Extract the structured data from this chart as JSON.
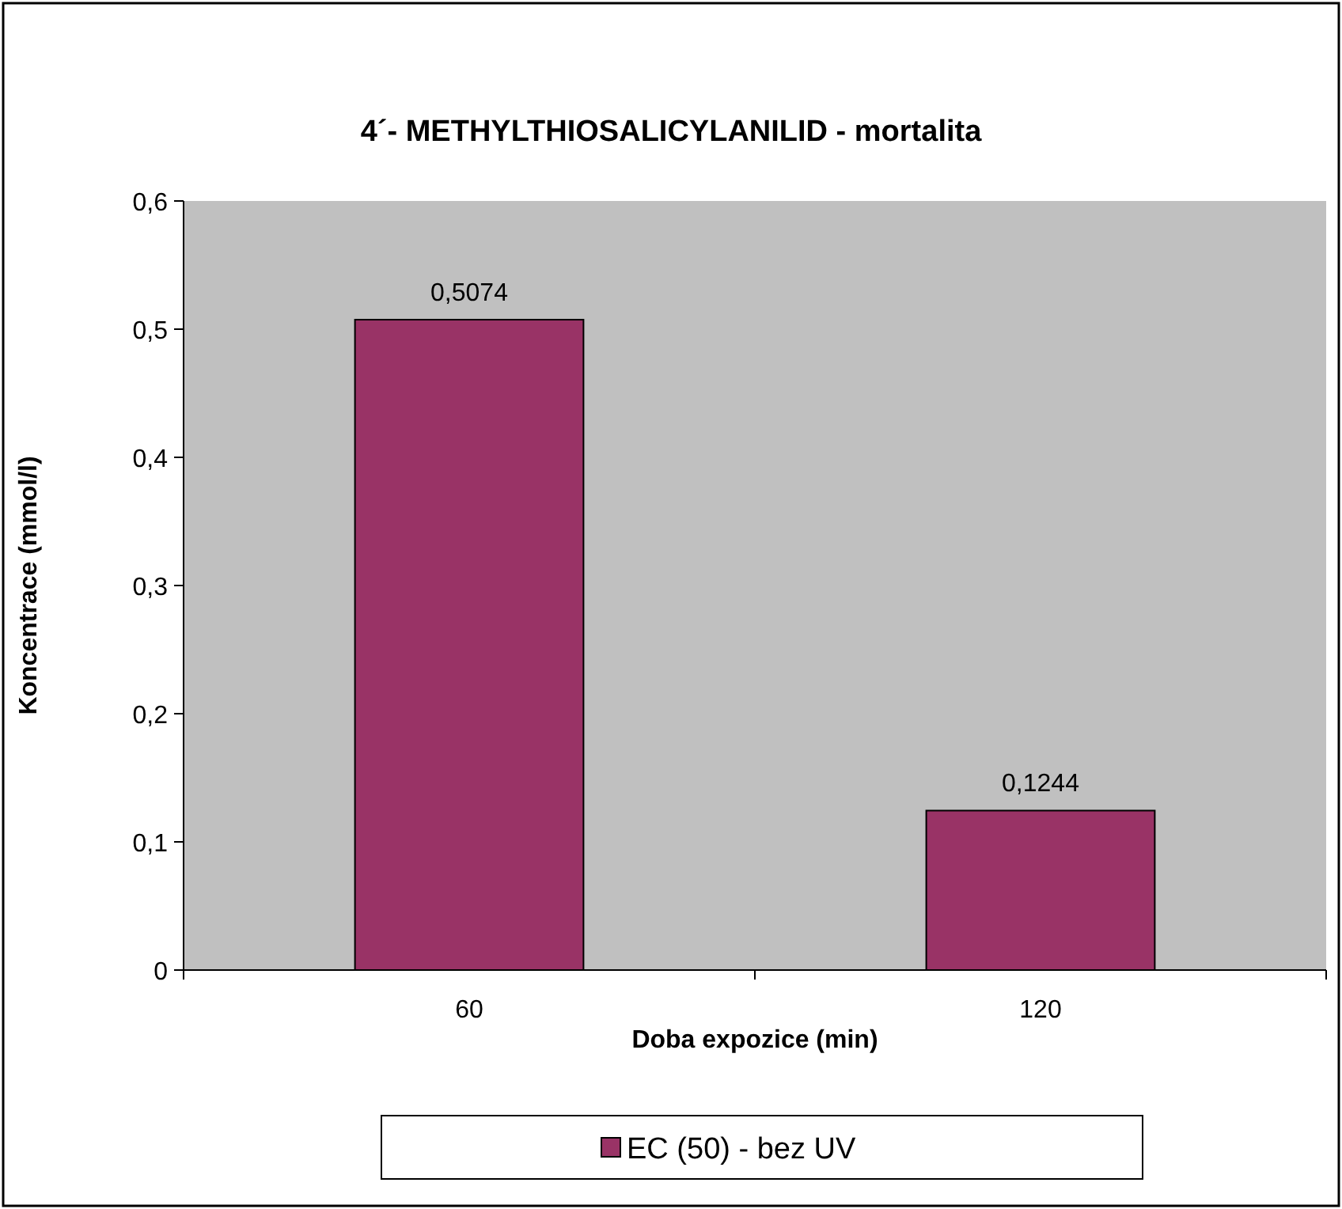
{
  "chart_data": {
    "type": "bar",
    "title": "4´- METHYLTHIOSALICYLANILID - mortalita",
    "xlabel": "Doba expozice (min)",
    "ylabel": "Koncentrace (mmol/l)",
    "categories": [
      "60",
      "120"
    ],
    "series": [
      {
        "name": "EC (50) - bez UV",
        "color": "#993366",
        "values": [
          0.5074,
          0.1244
        ],
        "value_labels": [
          "0,5074",
          "0,1244"
        ]
      }
    ],
    "ylim": [
      0,
      0.6
    ],
    "yticks": [
      0,
      {
        "value": 0.1,
        "label": "0,1"
      },
      {
        "value": 0.2,
        "label": "0,2"
      },
      {
        "value": 0.3,
        "label": "0,3"
      },
      {
        "value": 0.4,
        "label": "0,4"
      },
      {
        "value": 0.5,
        "label": "0,5"
      },
      {
        "value": 0.6,
        "label": "0,6"
      }
    ],
    "grid": false,
    "legend": "bottom"
  }
}
